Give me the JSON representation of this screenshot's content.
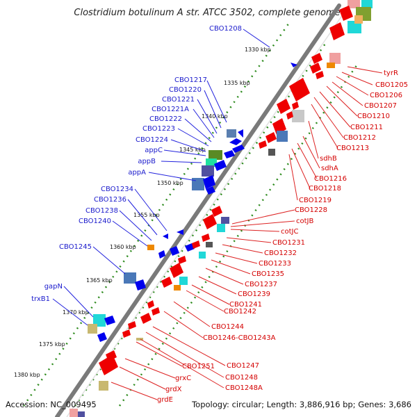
{
  "title": "Clostridium botulinum A str. ATCC 3502, complete genome",
  "footer": {
    "accession": "Accession: NC_009495",
    "topology": "Topology: circular; Length: 3,886,916 bp; Genes: 3,686"
  },
  "scale_labels": [
    "1330 kbp",
    "1335 kbp",
    "1340 kbp",
    "1345 kbp",
    "1350 kbp",
    "1355 kbp",
    "1360 kbp",
    "1365 kbp",
    "1370 kbp",
    "1375 kbp",
    "1380 kbp"
  ],
  "reverse_strand_genes": [
    "CBO1208",
    "CBO1217",
    "CBO1220",
    "CBO1221",
    "CBO1221A",
    "CBO1222",
    "CBO1223",
    "CBO1224",
    "appC",
    "appB",
    "appA",
    "CBO1234",
    "CBO1236",
    "CBO1238",
    "CBO1240",
    "CBO1245",
    "gapN",
    "trxB1"
  ],
  "forward_strand_genes": [
    "tyrR",
    "CBO1205",
    "CBO1206",
    "CBO1207",
    "CBO1210",
    "CBO1211",
    "CBO1212",
    "CBO1213",
    "sdhB",
    "sdhA",
    "CBO1216",
    "CBO1218",
    "CBO1219",
    "CBO1228",
    "cotJB",
    "cotJC",
    "CBO1231",
    "CBO1232",
    "CBO1233",
    "CBO1235",
    "CBO1237",
    "CBO1239",
    "CBO1241",
    "CBO1242",
    "CBO1244",
    "CBO1246-CBO1243A",
    "CBO1247",
    "CBO1248",
    "CBO1248A",
    "CBO1251",
    "grxC",
    "grdX",
    "grdE"
  ],
  "colors": {
    "reverse_strand": "#0000ee",
    "forward_strand": "#ee0000",
    "backbone": "#8c8c8c",
    "tick_dots": "#2e8b1e"
  }
}
